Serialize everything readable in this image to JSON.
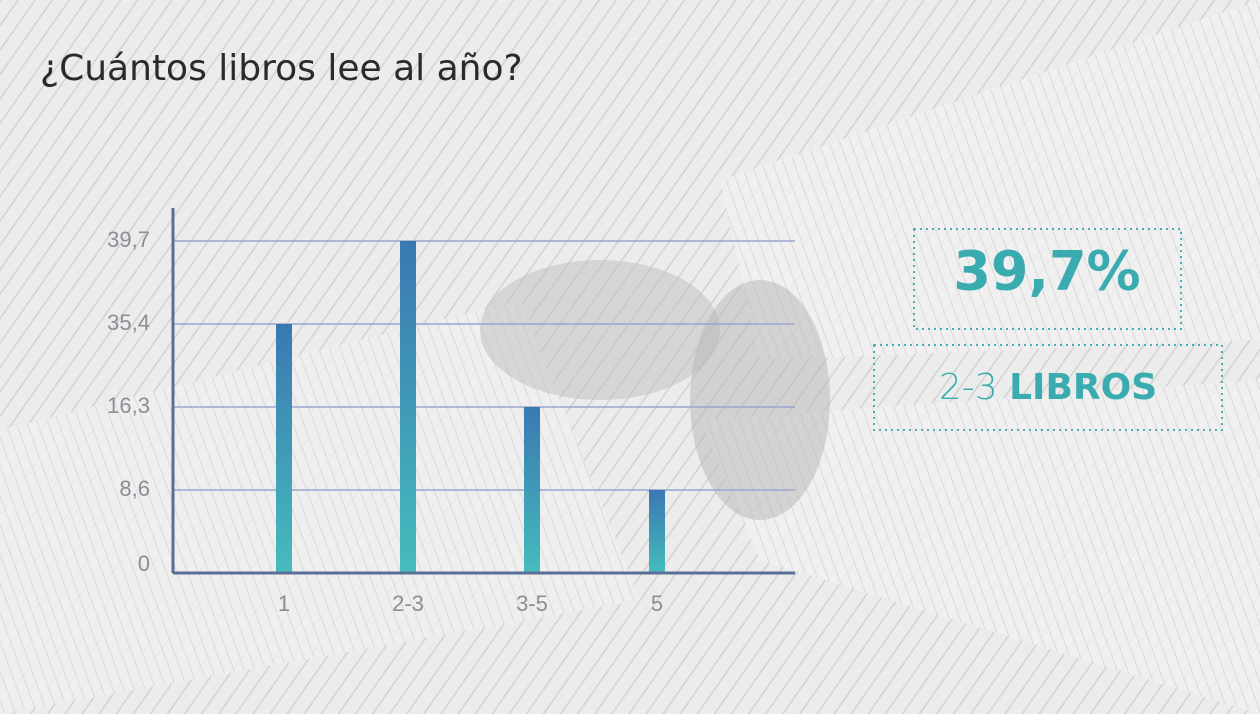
{
  "chart_data": {
    "type": "bar",
    "title": "¿Cuántos libros lee al año?",
    "categories": [
      "1",
      "2-3",
      "3-5",
      "5"
    ],
    "values": [
      35.4,
      39.7,
      16.3,
      8.6
    ],
    "colors": [
      "#3a78b2",
      "#46bcbc"
    ],
    "ylim": [
      0,
      39.7
    ],
    "yticks": [
      0,
      {
        "value": 8.6,
        "label": "8,6"
      },
      {
        "value": 16.3,
        "label": "16,3"
      },
      {
        "value": 35.4,
        "label": "35,4"
      },
      {
        "value": 39.7,
        "label": "39,7"
      }
    ],
    "grid": true,
    "highlight": {
      "label": "39,7%",
      "unit": "LIBROS"
    }
  }
}
